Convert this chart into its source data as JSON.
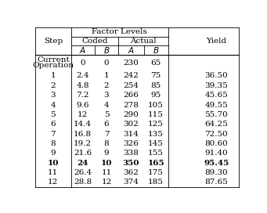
{
  "coded_A": [
    "0",
    "2.4",
    "4.8",
    "7.2",
    "9.6",
    "12",
    "14.4",
    "16.8",
    "19.2",
    "21.6",
    "24",
    "26.4",
    "28.8"
  ],
  "coded_B": [
    "0",
    "1",
    "2",
    "3",
    "4",
    "5",
    "6",
    "7",
    "8",
    "9",
    "10",
    "11",
    "12"
  ],
  "actual_A": [
    "230",
    "242",
    "254",
    "266",
    "278",
    "290",
    "302",
    "314",
    "326",
    "338",
    "350",
    "362",
    "374"
  ],
  "actual_B": [
    "65",
    "75",
    "85",
    "95",
    "105",
    "115",
    "125",
    "135",
    "145",
    "155",
    "165",
    "175",
    "185"
  ],
  "yield_vals": [
    "",
    "36.50",
    "39.35",
    "45.65",
    "49.55",
    "55.70",
    "64.25",
    "72.50",
    "80.60",
    "91.40",
    "95.45",
    "89.30",
    "87.65"
  ],
  "step_labels": [
    "Current\nOperation",
    "1",
    "2",
    "3",
    "4",
    "5",
    "6",
    "7",
    "8",
    "9",
    "10",
    "11",
    "12"
  ],
  "bold_row": 10,
  "bg_color": "#ffffff",
  "fs": 7.5
}
